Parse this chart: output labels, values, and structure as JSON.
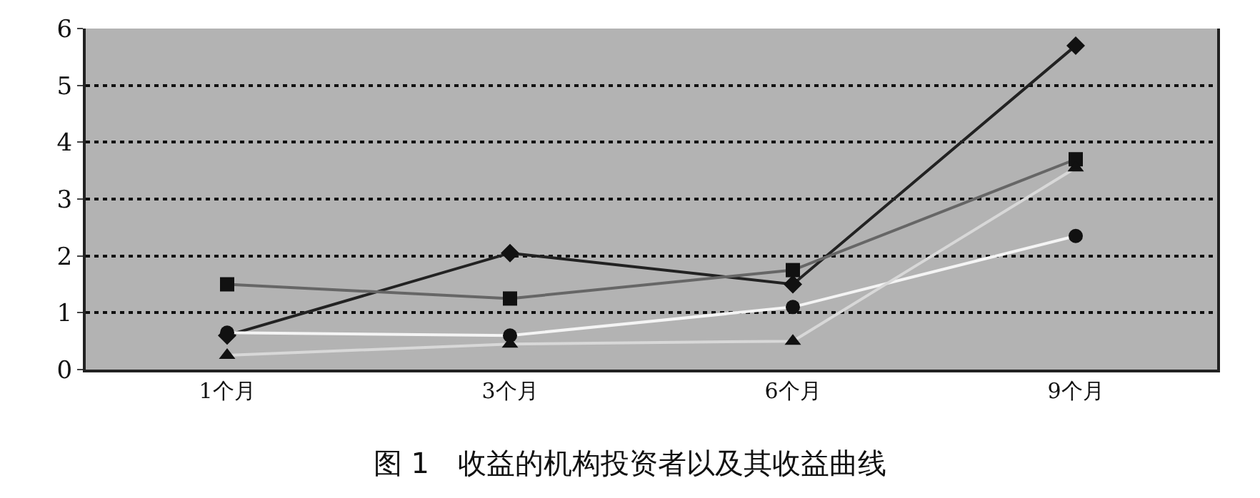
{
  "chart_data": {
    "type": "line",
    "title": "图 1　收益的机构投资者以及其收益曲线",
    "categories": [
      "1个月",
      "3个月",
      "6个月",
      "9个月"
    ],
    "series": [
      {
        "color": "#222222",
        "marker": "diamond",
        "values": [
          0.6,
          2.05,
          1.5,
          5.7
        ]
      },
      {
        "color": "#666666",
        "marker": "square",
        "values": [
          1.5,
          1.25,
          1.75,
          3.7
        ]
      },
      {
        "color": "#f4f4f4",
        "marker": "circle",
        "values": [
          0.65,
          0.6,
          1.1,
          2.35
        ]
      },
      {
        "color": "#d8d8d8",
        "marker": "triangle",
        "values": [
          0.25,
          0.45,
          0.5,
          3.55
        ]
      }
    ],
    "ylim": [
      0,
      6
    ],
    "yticks": [
      0,
      1,
      2,
      3,
      4,
      5,
      6
    ],
    "grid": "y"
  }
}
